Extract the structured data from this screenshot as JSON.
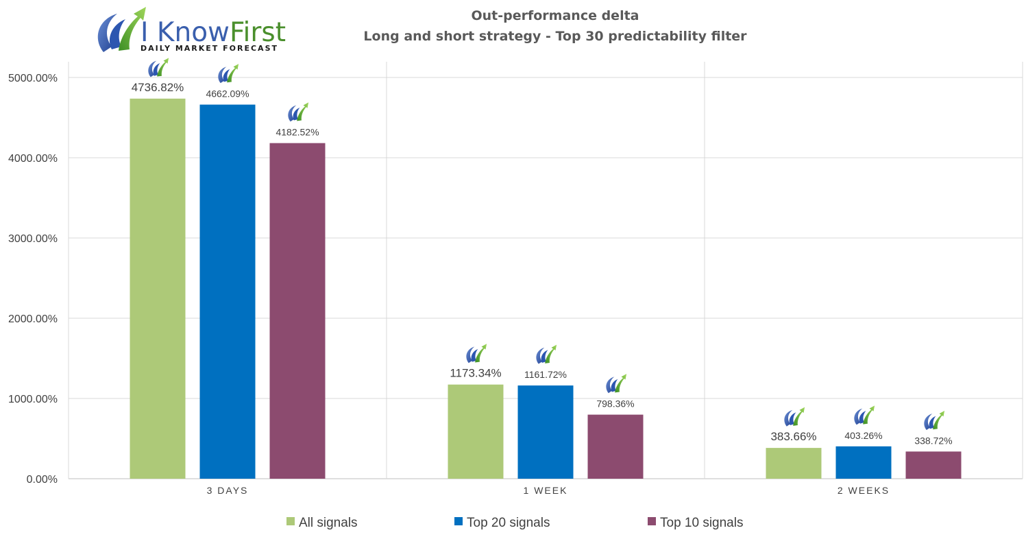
{
  "logo": {
    "text_main": "I Know",
    "text_first": "First",
    "subtitle": "Daily Market Forecast"
  },
  "chart_data": {
    "type": "bar",
    "title": "Out-performance delta",
    "subtitle": "Long and short strategy - Top 30 predictability filter",
    "categories": [
      "3 DAYS",
      "1 WEEK",
      "2 WEEKS"
    ],
    "series": [
      {
        "name": "All signals",
        "color": "#adc978",
        "values": [
          4736.82,
          1173.34,
          383.66
        ],
        "labels": [
          "4736.82%",
          "1173.34%",
          "383.66%"
        ]
      },
      {
        "name": "Top 20 signals",
        "color": "#0070c0",
        "values": [
          4662.09,
          1161.72,
          403.26
        ],
        "labels": [
          "4662.09%",
          "1161.72%",
          "403.26%"
        ]
      },
      {
        "name": "Top 10 signals",
        "color": "#8c4b6f",
        "values": [
          4182.52,
          798.36,
          338.72
        ],
        "labels": [
          "4182.52%",
          "798.36%",
          "338.72%"
        ]
      }
    ],
    "ylim": [
      0,
      5000
    ],
    "yticks": [
      "0.00%",
      "1000.00%",
      "2000.00%",
      "3000.00%",
      "4000.00%",
      "5000.00%"
    ],
    "grid": true,
    "legend_position": "bottom"
  }
}
